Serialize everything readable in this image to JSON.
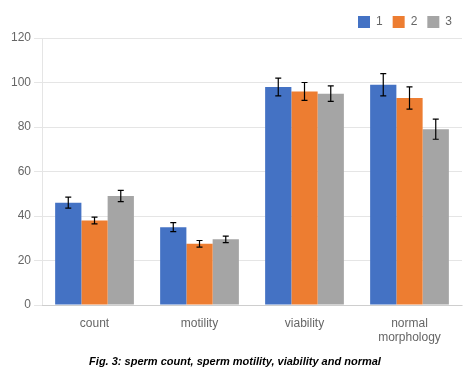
{
  "chart_data": {
    "type": "bar",
    "caption": "Fig. 3: sperm count, sperm motility, viability and normal",
    "categories": [
      "count",
      "motility",
      "viability",
      "normal\nmorphology"
    ],
    "series": [
      {
        "name": "1",
        "color": "#4472C4",
        "values": [
          46,
          35,
          98,
          99
        ],
        "errors": [
          2.5,
          2.0,
          4.0,
          5.0
        ]
      },
      {
        "name": "2",
        "color": "#ED7D31",
        "values": [
          38,
          27.5,
          96,
          93
        ],
        "errors": [
          1.5,
          1.5,
          4.0,
          5.0
        ]
      },
      {
        "name": "3",
        "color": "#A5A5A5",
        "values": [
          49,
          29.5,
          95,
          79
        ],
        "errors": [
          2.5,
          1.5,
          3.5,
          4.5
        ]
      }
    ],
    "ylim": [
      0,
      120
    ],
    "yticks": [
      0,
      20,
      40,
      60,
      80,
      100,
      120
    ],
    "grid": true,
    "legend": "upper right"
  }
}
